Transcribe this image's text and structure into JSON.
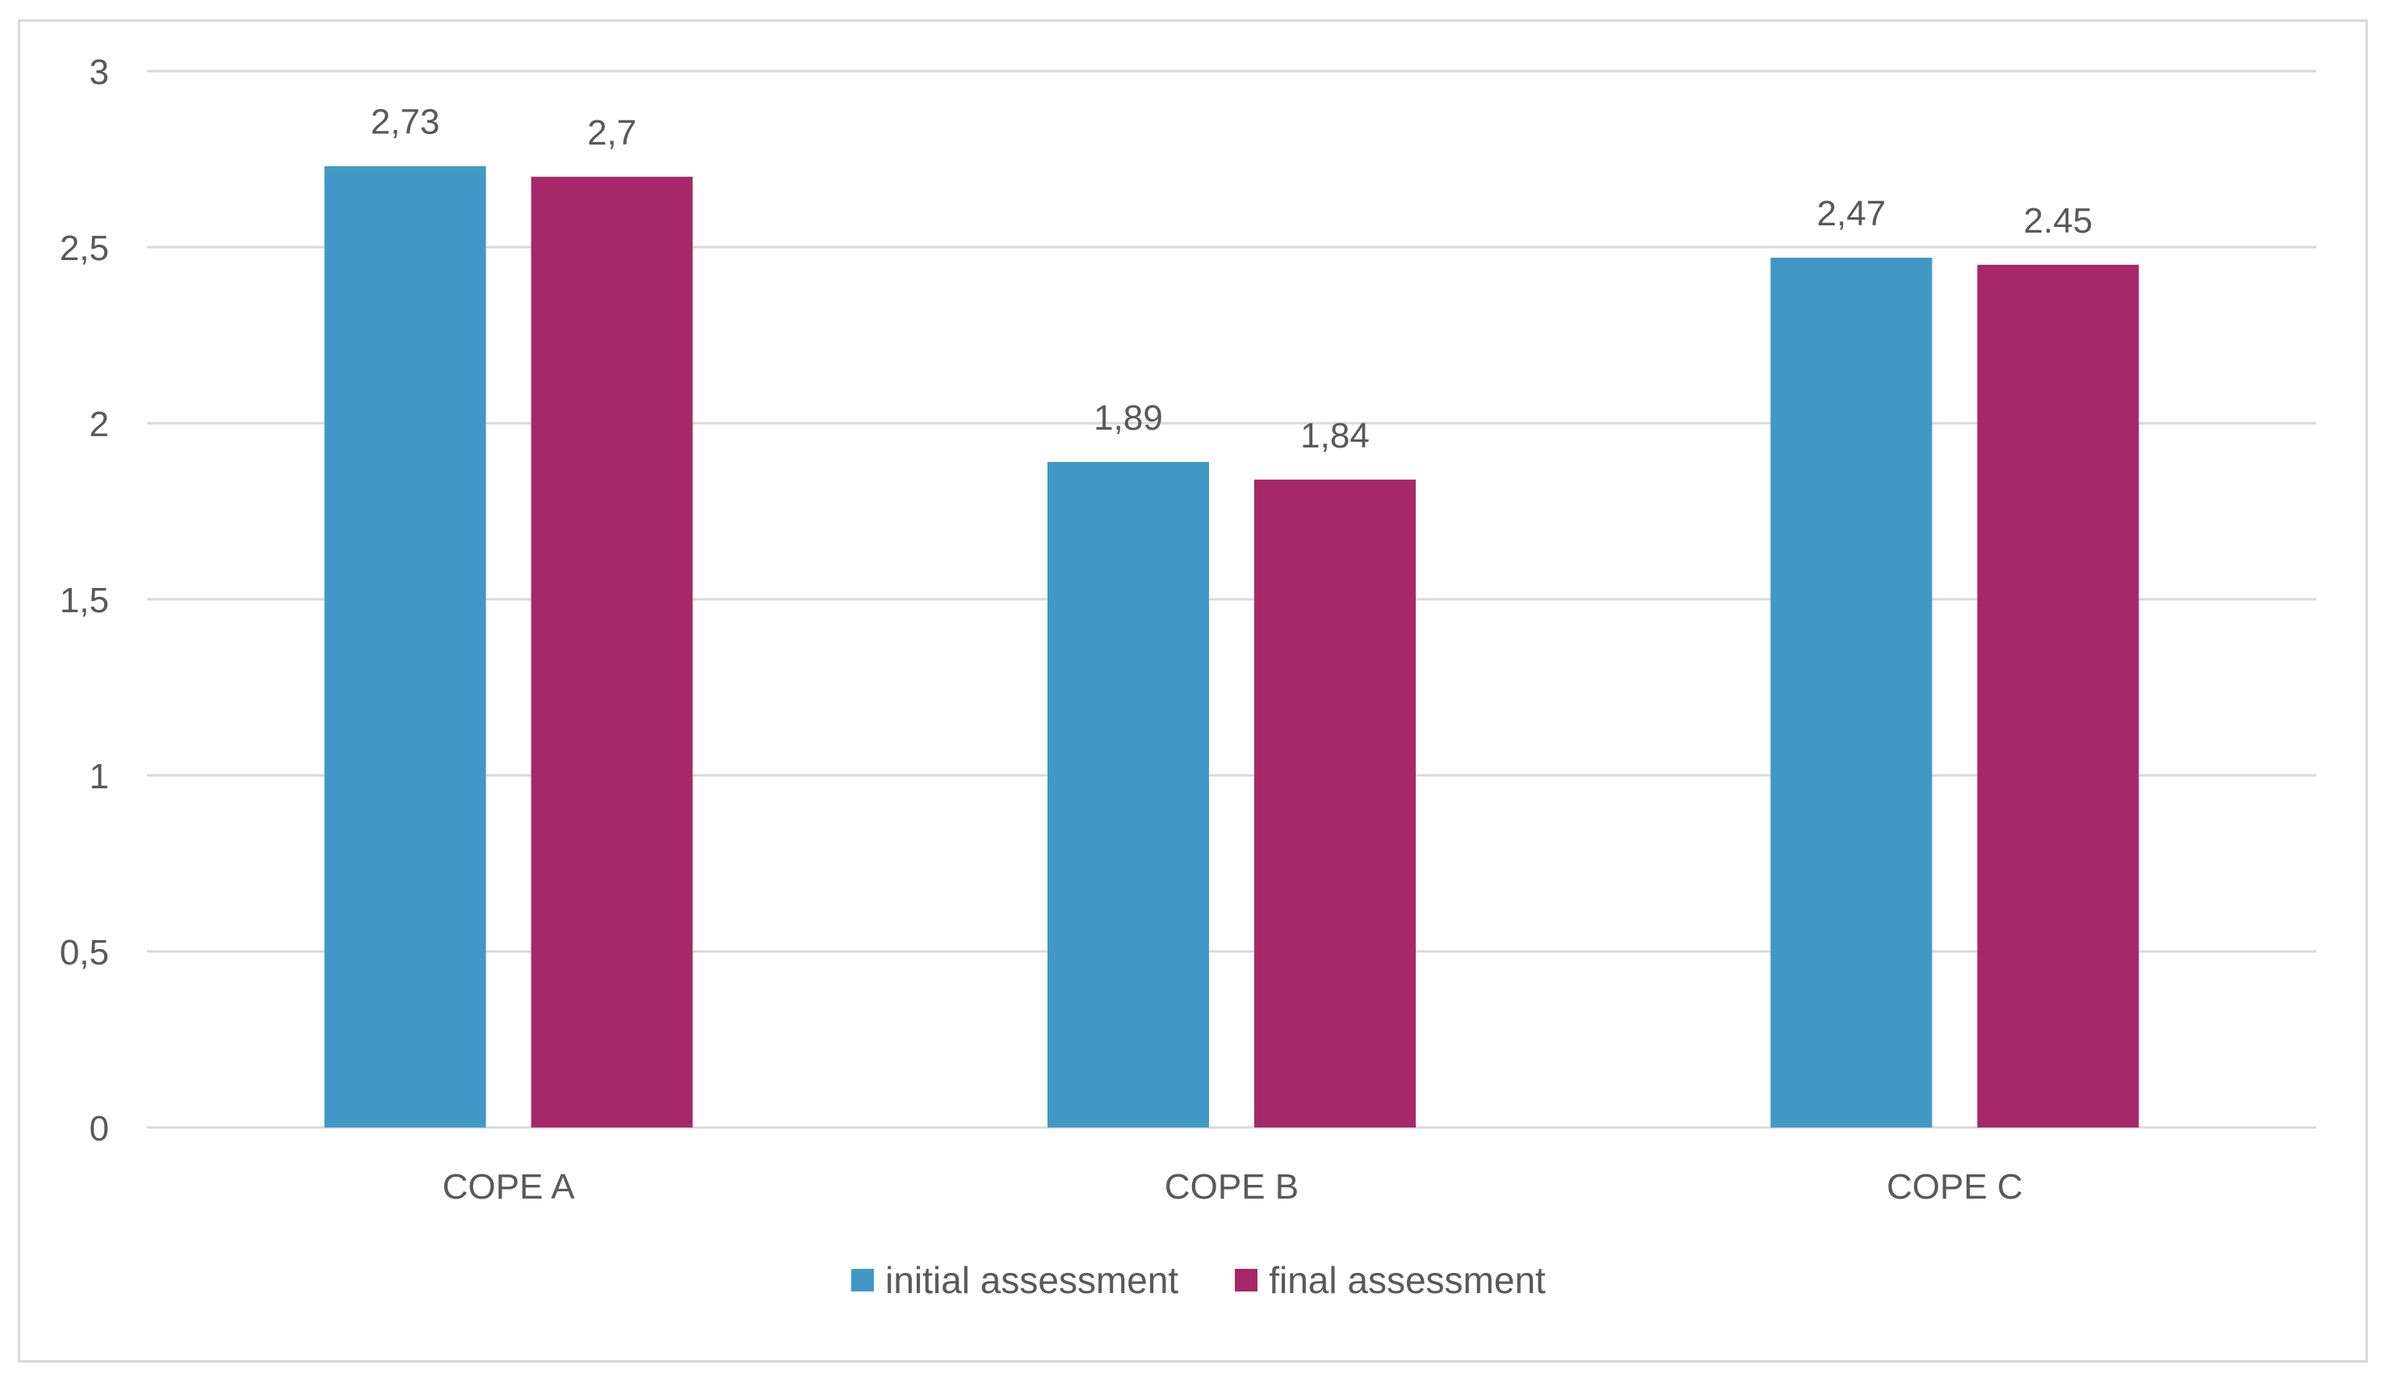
{
  "chart_data": {
    "type": "bar",
    "title": "",
    "xlabel": "",
    "ylabel": "",
    "categories": [
      "COPE A",
      "COPE B",
      "COPE C"
    ],
    "series": [
      {
        "name": "initial assessment",
        "color": "#4198C6",
        "values": [
          2.73,
          1.89,
          2.47
        ],
        "labels": [
          "2,73",
          "1,89",
          "2,47"
        ]
      },
      {
        "name": "final assessment",
        "color": "#A62868",
        "values": [
          2.7,
          1.84,
          2.45
        ],
        "labels": [
          "2,7",
          "1,84",
          "2.45"
        ]
      }
    ],
    "ylim": [
      0,
      3
    ],
    "yticks": [
      0,
      0.5,
      1,
      1.5,
      2,
      2.5,
      3
    ],
    "ytick_labels": [
      "0",
      "0,5",
      "1",
      "1,5",
      "2",
      "2,5",
      "3"
    ],
    "grid": true,
    "gridline_color": "#d9d9d9",
    "legend_position": "bottom"
  }
}
